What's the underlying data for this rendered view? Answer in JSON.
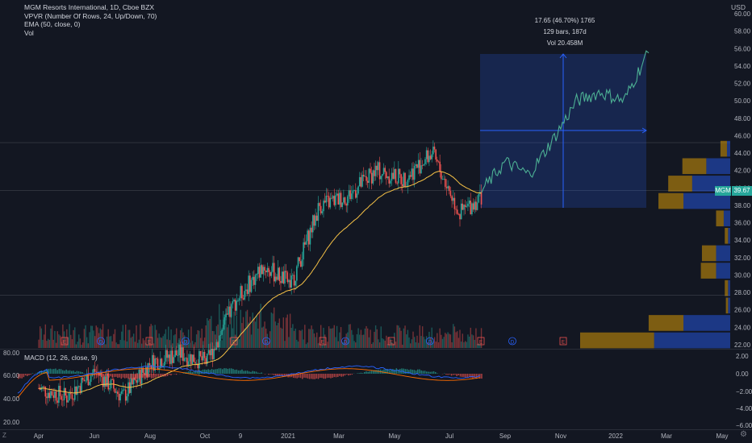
{
  "header": {
    "symbol_line": "MGM Resorts International, 1D, Cboe BZX",
    "indicator_1": "VPVR (Number Of Rows, 24, Up/Down, 70)",
    "indicator_2": "EMA (50, close, 0)",
    "indicator_3": "Vol",
    "currency": "USD"
  },
  "macd": {
    "label": "MACD (12, 26, close, 9)",
    "right_ticks": [
      "2.00",
      "0.00",
      "−2.00",
      "−4.00",
      "−6.00"
    ],
    "left_ticks": [
      "80.00",
      "60.00",
      "40.00",
      "20.00"
    ]
  },
  "measure": {
    "line1": "17.65 (46.70%) 1765",
    "line2": "129 bars, 187d",
    "line3": "Vol 20.458M"
  },
  "price_tag": {
    "ticker": "MGM",
    "price": "39.67"
  },
  "footer": {
    "timezone_icon": "Z",
    "settings_icon": "gear-icon"
  },
  "colors": {
    "background": "#131722",
    "up": "#26a69a",
    "down": "#ef5350",
    "ema": "#f5c146",
    "projection": "#4caf93",
    "measure_box": "#2962ff",
    "macd_line": "#2962ff",
    "signal_line": "#ff6d00"
  },
  "chart_data": {
    "type": "candlestick",
    "title": "MGM Resorts International, 1D, Cboe BZX",
    "y_ticks": [
      "60.00",
      "58.00",
      "56.00",
      "54.00",
      "52.00",
      "50.00",
      "48.00",
      "46.00",
      "44.00",
      "42.00",
      "40.00",
      "38.00",
      "36.00",
      "34.00",
      "32.00",
      "30.00",
      "28.00",
      "26.00",
      "24.00",
      "22.00"
    ],
    "ylim": [
      21.5,
      61
    ],
    "x_ticks": [
      "Apr",
      "Jun",
      "Aug",
      "Oct",
      "9",
      "2021",
      "Mar",
      "May",
      "Jul",
      "Sep",
      "Nov",
      "2022",
      "Mar",
      "May"
    ],
    "price_series": [
      {
        "month": "Apr 2020",
        "close": 17
      },
      {
        "month": "May 2020",
        "close": 16
      },
      {
        "month": "Jun 2020",
        "close": 19
      },
      {
        "month": "Jul 2020",
        "close": 16
      },
      {
        "month": "Aug 2020",
        "close": 20
      },
      {
        "month": "Sep 2020",
        "close": 21
      },
      {
        "month": "Oct 2020",
        "close": 20
      },
      {
        "month": "Nov 2020",
        "close": 27
      },
      {
        "month": "Dec 2020",
        "close": 31
      },
      {
        "month": "Jan 2021",
        "close": 29
      },
      {
        "month": "Feb 2021",
        "close": 38
      },
      {
        "month": "Mar 2021",
        "close": 39
      },
      {
        "month": "Apr 2021",
        "close": 42
      },
      {
        "month": "May 2021",
        "close": 41
      },
      {
        "month": "Jun 2021",
        "close": 44
      },
      {
        "month": "Jul 2021",
        "close": 37
      },
      {
        "month": "Aug 2021",
        "close": 39.7
      }
    ],
    "projection": [
      {
        "month": "Aug 2021",
        "close": 39.7
      },
      {
        "month": "Sep 2021",
        "close": 43
      },
      {
        "month": "Oct 2021",
        "close": 41.5
      },
      {
        "month": "Nov 2021",
        "close": 45.5
      },
      {
        "month": "Dec 2021",
        "close": 50
      },
      {
        "month": "Jan 2022",
        "close": 51
      },
      {
        "month": "Feb 2022",
        "close": 50
      },
      {
        "month": "Mar 2022",
        "close": 55.5
      }
    ],
    "current_price": 39.67,
    "measure_change": 17.65,
    "measure_percent": 46.7,
    "volume_profile": [
      {
        "price": 44.5,
        "up": 0.6,
        "down": 0.3
      },
      {
        "price": 42.5,
        "up": 2.2,
        "down": 2.2
      },
      {
        "price": 40.5,
        "up": 2.2,
        "down": 3.5
      },
      {
        "price": 38.5,
        "up": 2.3,
        "down": 4.3
      },
      {
        "price": 36.5,
        "up": 0.7,
        "down": 0.6
      },
      {
        "price": 34.5,
        "up": 0.3,
        "down": 0.2
      },
      {
        "price": 32.5,
        "up": 1.3,
        "down": 1.3
      },
      {
        "price": 30.5,
        "up": 1.4,
        "down": 1.3
      },
      {
        "price": 28.5,
        "up": 0.3,
        "down": 0.2
      },
      {
        "price": 26.5,
        "up": 0.2,
        "down": 0.2
      },
      {
        "price": 24.5,
        "up": 3.2,
        "down": 4.3
      },
      {
        "price": 22.5,
        "up": 6.8,
        "down": 7.0
      }
    ]
  }
}
